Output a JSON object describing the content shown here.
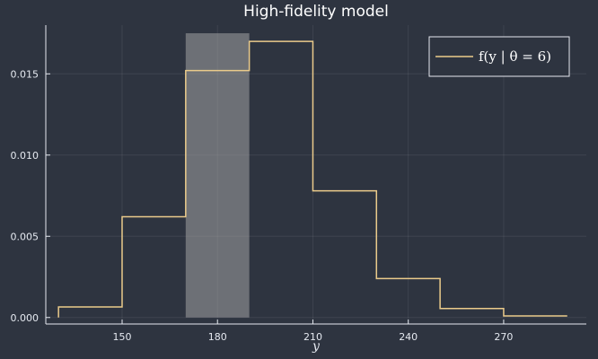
{
  "chart_data": {
    "type": "line",
    "step": true,
    "title": "High-fidelity model",
    "xlabel": "y",
    "ylabel": "",
    "xlim": [
      126,
      296
    ],
    "ylim": [
      -0.0004,
      0.018
    ],
    "xticks": [
      150,
      180,
      210,
      240,
      270
    ],
    "yticks": [
      0.0,
      0.005,
      0.01,
      0.015
    ],
    "ytick_labels": [
      "0.000",
      "0.005",
      "0.010",
      "0.015"
    ],
    "grid": true,
    "legend_position": "top-right",
    "series": [
      {
        "name": "f(y |  θ = 6)",
        "color": "#ebcb8b",
        "x": [
          130,
          150,
          170,
          190,
          210,
          230,
          250,
          270,
          290
        ],
        "values": [
          0.0,
          0.00065,
          0.0062,
          0.0152,
          0.017,
          0.0078,
          0.0024,
          0.00055,
          0.0001
        ]
      }
    ],
    "highlight": {
      "x_start": 170,
      "x_end": 190,
      "y_top": 0.0175,
      "color": "#a3a3a3"
    }
  }
}
